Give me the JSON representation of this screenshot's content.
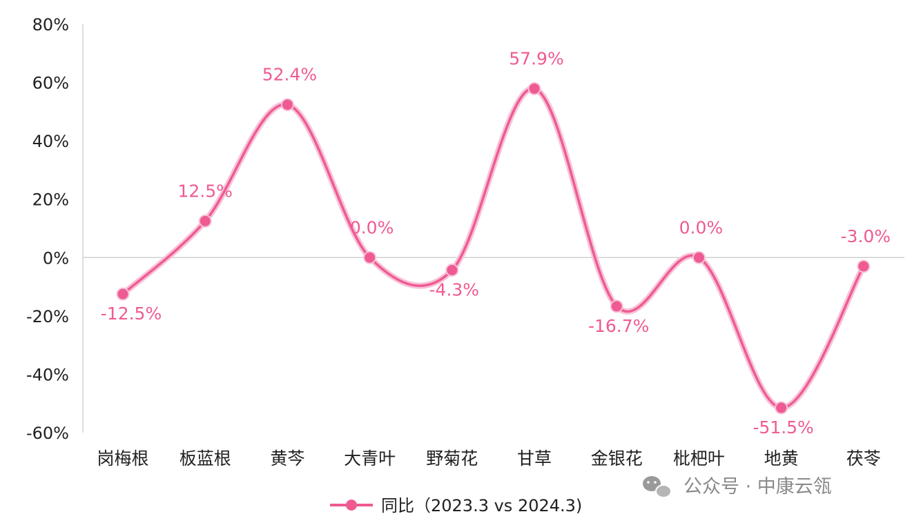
{
  "chart_data": {
    "type": "line",
    "categories": [
      "岗梅根",
      "板蓝根",
      "黄芩",
      "大青叶",
      "野菊花",
      "甘草",
      "金银花",
      "枇杷叶",
      "地黄",
      "茯苓"
    ],
    "series": [
      {
        "name": "同比（2023.3 vs 2024.3)",
        "values": [
          -12.5,
          12.5,
          52.4,
          0.0,
          -4.3,
          57.9,
          -16.7,
          0.0,
          -51.5,
          -3.0
        ],
        "labels": [
          "-12.5%",
          "12.5%",
          "52.4%",
          "0.0%",
          "-4.3%",
          "57.9%",
          "-16.7%",
          "0.0%",
          "-51.5%",
          "-3.0%"
        ]
      }
    ],
    "ylim": [
      -60,
      80
    ],
    "yticks": [
      80,
      60,
      40,
      20,
      0,
      -20,
      -40,
      -60
    ],
    "ytick_labels": [
      "80%",
      "60%",
      "40%",
      "20%",
      "0%",
      "-20%",
      "-40%",
      "-60%"
    ],
    "smooth": true,
    "legend_position": "bottom",
    "grid": false
  },
  "colors": {
    "series": "#ef5a93",
    "axis": "#c8c8c8"
  },
  "watermark": {
    "text": "公众号 · 中康云瓴",
    "icon": "wechat-icon"
  }
}
